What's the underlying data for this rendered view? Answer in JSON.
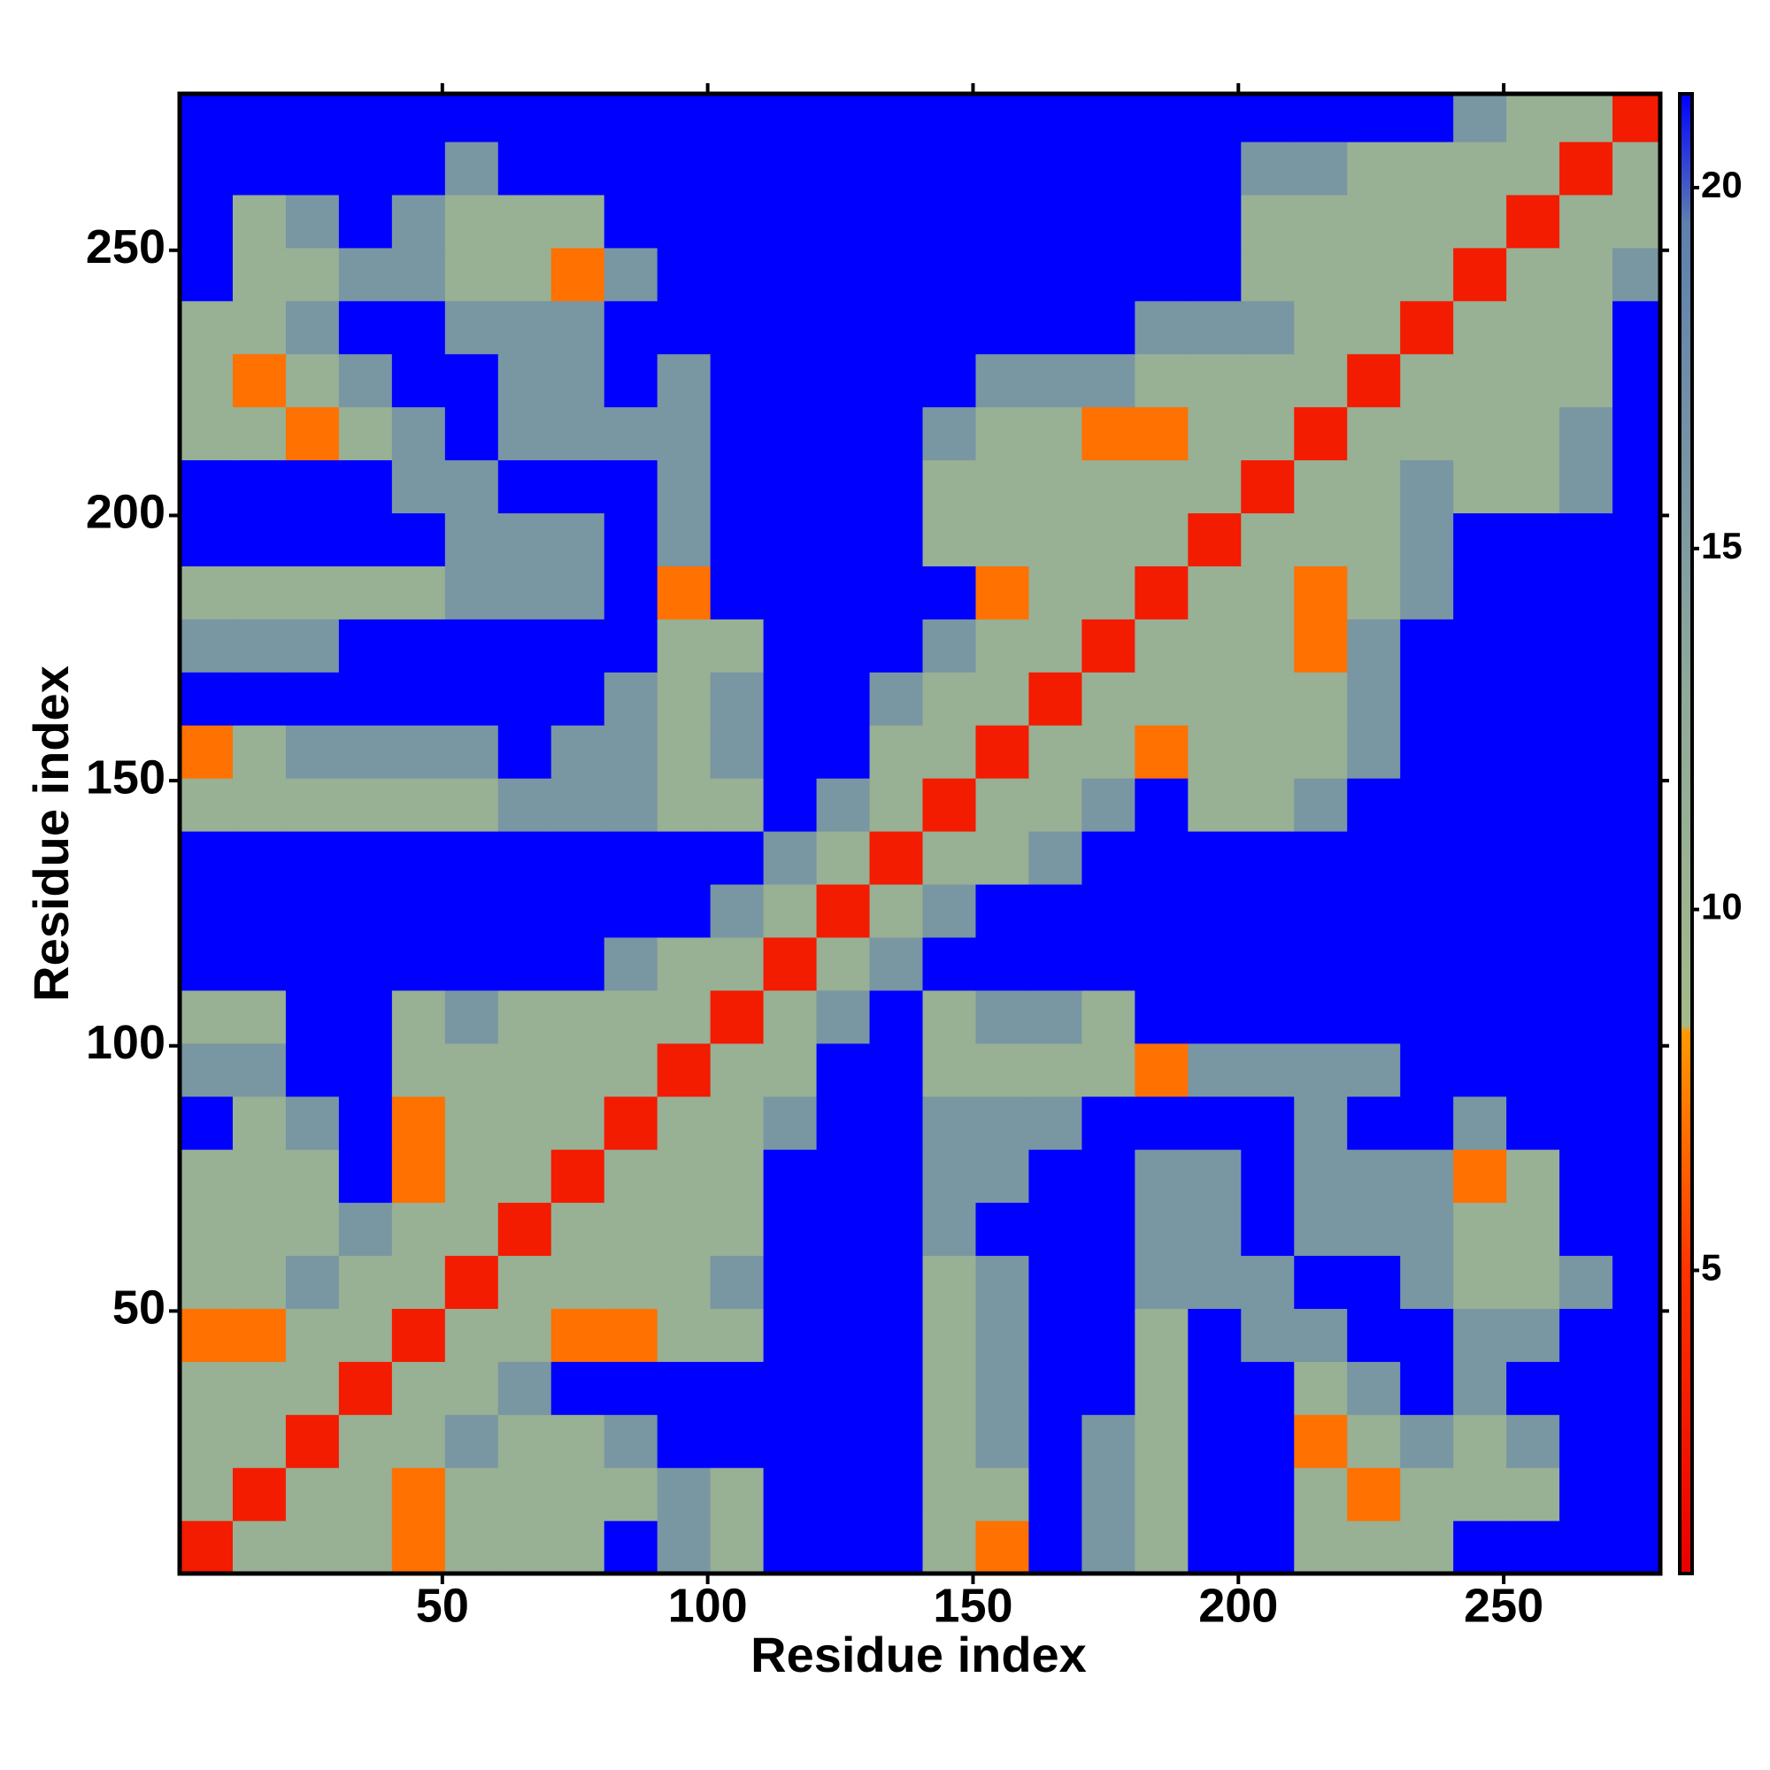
{
  "chart_data": {
    "type": "heatmap",
    "xlabel": "Residue index",
    "ylabel": "Residue index",
    "xlim": [
      0.5,
      279.5
    ],
    "ylim": [
      0.5,
      279.5
    ],
    "xticks": [
      50,
      100,
      150,
      200,
      250
    ],
    "yticks": [
      50,
      100,
      150,
      200,
      250
    ],
    "bins": [
      0.5,
      10.5,
      20.5,
      30.5,
      40.5,
      50.5,
      60.5,
      70.5,
      80.5,
      90.5,
      100.5,
      110.5,
      120.5,
      130.5,
      140.5,
      150.5,
      160.5,
      170.5,
      180.5,
      190.5,
      200.5,
      210.5,
      220.5,
      230.5,
      240.5,
      250.5,
      260.5,
      270.5,
      279.5
    ],
    "colorbar_lim": [
      0.8,
      21.3
    ],
    "colorbar_ticks": [
      5,
      10,
      15,
      20
    ],
    "colorscale": [
      [
        0.8,
        "#e60000"
      ],
      [
        5,
        "#ff3300"
      ],
      [
        8.3,
        "#ff9900"
      ],
      [
        8.4,
        "#a3ba8a"
      ],
      [
        13,
        "#8fa99a"
      ],
      [
        19.5,
        "#5f7fae"
      ],
      [
        21.3,
        "#0000ff"
      ]
    ],
    "matrix": [
      [
        3,
        11,
        11,
        11,
        7,
        11,
        11,
        11,
        22,
        16,
        11,
        22,
        22,
        22,
        11,
        7,
        22,
        16,
        11,
        22,
        22,
        11,
        11,
        11,
        22,
        22,
        22,
        22
      ],
      [
        11,
        3,
        11,
        11,
        7,
        11,
        11,
        11,
        11,
        16,
        11,
        22,
        22,
        22,
        11,
        11,
        22,
        16,
        11,
        22,
        22,
        11,
        7,
        11,
        11,
        11,
        22,
        22
      ],
      [
        11,
        11,
        3,
        11,
        11,
        16,
        11,
        11,
        16,
        22,
        22,
        22,
        22,
        22,
        11,
        16,
        22,
        16,
        11,
        22,
        22,
        7,
        11,
        16,
        11,
        16,
        22,
        22
      ],
      [
        11,
        11,
        11,
        3,
        11,
        11,
        16,
        22,
        22,
        22,
        22,
        22,
        22,
        22,
        11,
        16,
        22,
        22,
        11,
        22,
        22,
        11,
        16,
        22,
        16,
        22,
        22,
        22
      ],
      [
        7,
        7,
        11,
        11,
        3,
        11,
        11,
        7,
        7,
        11,
        11,
        22,
        22,
        22,
        11,
        16,
        22,
        22,
        11,
        22,
        16,
        16,
        22,
        22,
        16,
        16,
        22,
        22
      ],
      [
        11,
        11,
        16,
        11,
        11,
        3,
        11,
        11,
        11,
        11,
        16,
        22,
        22,
        22,
        11,
        16,
        22,
        22,
        16,
        16,
        16,
        22,
        22,
        16,
        11,
        11,
        16,
        22
      ],
      [
        11,
        11,
        11,
        16,
        11,
        11,
        3,
        11,
        11,
        11,
        11,
        22,
        22,
        22,
        16,
        22,
        22,
        22,
        16,
        16,
        22,
        16,
        16,
        16,
        11,
        11,
        22,
        22
      ],
      [
        11,
        11,
        11,
        22,
        7,
        11,
        11,
        3,
        11,
        11,
        11,
        22,
        22,
        22,
        16,
        16,
        22,
        22,
        16,
        16,
        22,
        16,
        16,
        16,
        7,
        11,
        22,
        22
      ],
      [
        22,
        11,
        16,
        22,
        7,
        11,
        11,
        11,
        3,
        11,
        11,
        16,
        22,
        22,
        16,
        16,
        16,
        22,
        22,
        22,
        22,
        16,
        22,
        22,
        16,
        22,
        22,
        22
      ],
      [
        16,
        16,
        22,
        22,
        11,
        11,
        11,
        11,
        11,
        3,
        11,
        11,
        22,
        22,
        11,
        11,
        11,
        11,
        7,
        16,
        16,
        16,
        16,
        22,
        22,
        22,
        22,
        22
      ],
      [
        11,
        11,
        22,
        22,
        11,
        16,
        11,
        11,
        11,
        11,
        3,
        11,
        16,
        22,
        11,
        16,
        16,
        11,
        22,
        22,
        22,
        22,
        22,
        22,
        22,
        22,
        22,
        22
      ],
      [
        22,
        22,
        22,
        22,
        22,
        22,
        22,
        22,
        16,
        11,
        11,
        3,
        11,
        16,
        22,
        22,
        22,
        22,
        22,
        22,
        22,
        22,
        22,
        22,
        22,
        22,
        22,
        22
      ],
      [
        22,
        22,
        22,
        22,
        22,
        22,
        22,
        22,
        22,
        22,
        16,
        11,
        3,
        11,
        16,
        22,
        22,
        22,
        22,
        22,
        22,
        22,
        22,
        22,
        22,
        22,
        22,
        22
      ],
      [
        22,
        22,
        22,
        22,
        22,
        22,
        22,
        22,
        22,
        22,
        22,
        16,
        11,
        3,
        11,
        11,
        16,
        22,
        22,
        22,
        22,
        22,
        22,
        22,
        22,
        22,
        22,
        22
      ],
      [
        11,
        11,
        11,
        11,
        11,
        11,
        16,
        16,
        16,
        11,
        11,
        22,
        16,
        11,
        3,
        11,
        11,
        16,
        22,
        11,
        11,
        16,
        22,
        22,
        22,
        22,
        22,
        22
      ],
      [
        7,
        11,
        16,
        16,
        16,
        16,
        22,
        16,
        16,
        11,
        16,
        22,
        22,
        11,
        11,
        3,
        11,
        11,
        7,
        11,
        11,
        11,
        16,
        22,
        22,
        22,
        22,
        22
      ],
      [
        22,
        22,
        22,
        22,
        22,
        22,
        22,
        22,
        16,
        11,
        16,
        22,
        22,
        16,
        11,
        11,
        3,
        11,
        11,
        11,
        11,
        11,
        16,
        22,
        22,
        22,
        22,
        22
      ],
      [
        16,
        16,
        16,
        22,
        22,
        22,
        22,
        22,
        22,
        11,
        11,
        22,
        22,
        22,
        16,
        11,
        11,
        3,
        11,
        11,
        11,
        7,
        16,
        22,
        22,
        22,
        22,
        22
      ],
      [
        11,
        11,
        11,
        11,
        11,
        16,
        16,
        16,
        22,
        7,
        22,
        22,
        22,
        22,
        22,
        7,
        11,
        11,
        3,
        11,
        11,
        7,
        11,
        16,
        22,
        22,
        22,
        22
      ],
      [
        22,
        22,
        22,
        22,
        22,
        16,
        16,
        16,
        22,
        16,
        22,
        22,
        22,
        22,
        11,
        11,
        11,
        11,
        11,
        3,
        11,
        11,
        11,
        16,
        22,
        22,
        22,
        22
      ],
      [
        22,
        22,
        22,
        22,
        16,
        16,
        22,
        22,
        22,
        16,
        22,
        22,
        22,
        22,
        11,
        11,
        11,
        11,
        11,
        11,
        3,
        11,
        11,
        16,
        11,
        11,
        16,
        22
      ],
      [
        11,
        11,
        7,
        11,
        16,
        22,
        16,
        16,
        16,
        16,
        22,
        22,
        22,
        22,
        16,
        11,
        11,
        7,
        7,
        11,
        11,
        3,
        11,
        11,
        11,
        11,
        16,
        22
      ],
      [
        11,
        7,
        11,
        16,
        22,
        22,
        16,
        16,
        22,
        16,
        22,
        22,
        22,
        22,
        22,
        16,
        16,
        16,
        11,
        11,
        11,
        11,
        3,
        11,
        11,
        11,
        11,
        22
      ],
      [
        11,
        11,
        16,
        22,
        22,
        16,
        16,
        16,
        22,
        22,
        22,
        22,
        22,
        22,
        22,
        22,
        22,
        22,
        16,
        16,
        16,
        11,
        11,
        3,
        11,
        11,
        11,
        22
      ],
      [
        22,
        11,
        11,
        16,
        16,
        11,
        11,
        7,
        16,
        22,
        22,
        22,
        22,
        22,
        22,
        22,
        22,
        22,
        22,
        22,
        11,
        11,
        11,
        11,
        3,
        11,
        11,
        16
      ],
      [
        22,
        11,
        16,
        22,
        16,
        11,
        11,
        11,
        22,
        22,
        22,
        22,
        22,
        22,
        22,
        22,
        22,
        22,
        22,
        22,
        11,
        11,
        11,
        11,
        11,
        3,
        11,
        11
      ],
      [
        22,
        22,
        22,
        22,
        22,
        16,
        22,
        22,
        22,
        22,
        22,
        22,
        22,
        22,
        22,
        22,
        22,
        22,
        22,
        22,
        16,
        16,
        11,
        11,
        11,
        11,
        3,
        11
      ],
      [
        22,
        22,
        22,
        22,
        22,
        22,
        22,
        22,
        22,
        22,
        22,
        22,
        22,
        22,
        22,
        22,
        22,
        22,
        22,
        22,
        22,
        22,
        22,
        22,
        16,
        11,
        11,
        3
      ]
    ]
  }
}
